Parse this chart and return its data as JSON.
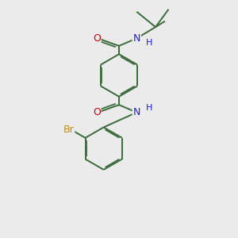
{
  "bg_color": "#ebebeb",
  "bond_color": "#3a6b3a",
  "bond_width": 1.4,
  "dbo": 0.055,
  "atom_colors": {
    "O": "#cc0000",
    "N": "#1a1aee",
    "Br": "#cc8800",
    "H": "#1a1aee"
  },
  "fig_width": 3.0,
  "fig_height": 3.0,
  "dpi": 100
}
